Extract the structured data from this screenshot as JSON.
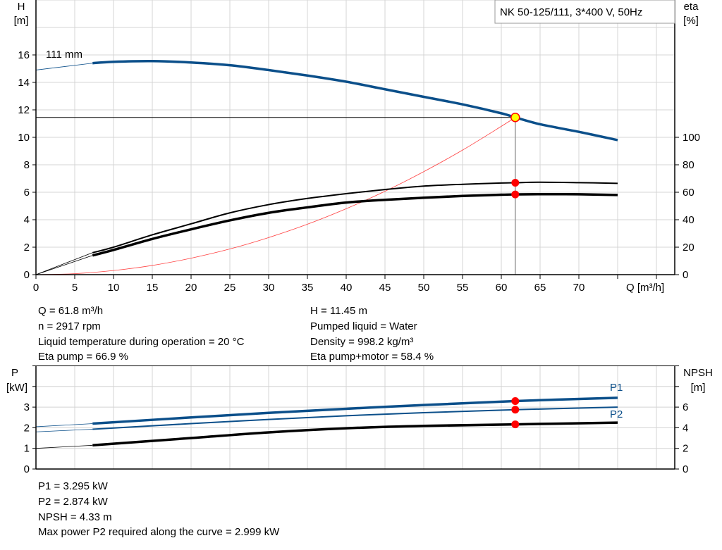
{
  "chart_data": [
    {
      "type": "line",
      "title": "NK 50-125/111, 3*400 V, 50Hz",
      "xlabel": "Q [m³/h]",
      "ylabel_left": [
        "H",
        "[m]"
      ],
      "ylabel_right": [
        "eta",
        "[%]"
      ],
      "xlim": [
        0,
        80
      ],
      "ylim_left": [
        0,
        20
      ],
      "ylim_right": [
        0,
        200
      ],
      "x_ticks": [
        0,
        5,
        10,
        15,
        20,
        25,
        30,
        35,
        40,
        45,
        50,
        55,
        60,
        65,
        70
      ],
      "y_ticks_left": [
        0,
        2,
        4,
        6,
        8,
        10,
        12,
        14,
        16
      ],
      "y_ticks_right": [
        0,
        20,
        40,
        60,
        80,
        100
      ],
      "grid": true,
      "curve_label": "111 mm",
      "colors": {
        "head": "#0b4f8a",
        "eta": "#000000",
        "system": "#ff4040",
        "point": "#ff0000",
        "op_point": "#ffff00"
      },
      "series": [
        {
          "id": "head",
          "axis": "left",
          "x": [
            0,
            7.3,
            10,
            15,
            20,
            25,
            30,
            35,
            40,
            45,
            50,
            55,
            60,
            61.8,
            65,
            70,
            75
          ],
          "y": [
            14.9,
            15.4,
            15.5,
            15.55,
            15.45,
            15.25,
            14.9,
            14.5,
            14.05,
            13.5,
            12.95,
            12.4,
            11.75,
            11.45,
            10.95,
            10.4,
            9.8
          ]
        },
        {
          "id": "eta-pump",
          "axis": "right",
          "x": [
            0,
            7.3,
            10,
            15,
            20,
            25,
            30,
            35,
            40,
            45,
            50,
            55,
            60,
            61.8,
            65,
            70,
            75
          ],
          "y": [
            0,
            16,
            20,
            29,
            37,
            45,
            51,
            55.5,
            59,
            62,
            64.5,
            65.8,
            66.7,
            66.9,
            67.3,
            67,
            66.5
          ]
        },
        {
          "id": "eta-pump-motor",
          "axis": "right",
          "x": [
            0,
            7.3,
            10,
            15,
            20,
            25,
            30,
            35,
            40,
            45,
            50,
            55,
            60,
            61.8,
            65,
            70,
            75
          ],
          "y": [
            0,
            14,
            18,
            26,
            33,
            39.5,
            45,
            49,
            52.5,
            54.5,
            56,
            57.3,
            58.2,
            58.4,
            58.6,
            58.5,
            58
          ]
        },
        {
          "id": "system",
          "axis": "left",
          "x": [
            0,
            5,
            10,
            15,
            20,
            25,
            30,
            35,
            40,
            45,
            50,
            55,
            60,
            61.8
          ],
          "y": [
            0,
            0.07,
            0.3,
            0.67,
            1.2,
            1.87,
            2.7,
            3.67,
            4.8,
            6.07,
            7.5,
            9.07,
            10.8,
            11.45
          ]
        }
      ],
      "operating_point": {
        "Q": 61.8,
        "H": 11.45,
        "eta_pump": 66.9,
        "eta_pump_motor": 58.4
      }
    },
    {
      "type": "line",
      "ylabel_left": [
        "P",
        "[kW]"
      ],
      "ylabel_right": [
        "NPSH",
        "[m]"
      ],
      "xlim": [
        0,
        80
      ],
      "ylim_left": [
        0,
        5
      ],
      "ylim_right": [
        0,
        10
      ],
      "y_ticks_left": [
        0,
        1,
        2,
        3
      ],
      "y_ticks_right": [
        0,
        2,
        4,
        6
      ],
      "grid": true,
      "colors": {
        "p1": "#0b4f8a",
        "p2": "#0b4f8a",
        "npsh": "#000000",
        "point": "#ff0000"
      },
      "series": [
        {
          "id": "P1",
          "name": "P1",
          "axis": "left",
          "x": [
            0,
            7.3,
            20,
            30,
            40,
            50,
            61.8,
            75
          ],
          "y": [
            2.05,
            2.2,
            2.5,
            2.72,
            2.92,
            3.1,
            3.295,
            3.45
          ]
        },
        {
          "id": "P2",
          "name": "P2",
          "axis": "left",
          "x": [
            0,
            7.3,
            20,
            30,
            40,
            50,
            61.8,
            75
          ],
          "y": [
            1.8,
            1.93,
            2.2,
            2.4,
            2.58,
            2.73,
            2.874,
            3.0
          ]
        },
        {
          "id": "NPSH",
          "axis": "right",
          "x": [
            0,
            7.3,
            20,
            30,
            40,
            50,
            61.8,
            75
          ],
          "y": [
            2.0,
            2.3,
            3.0,
            3.55,
            3.95,
            4.18,
            4.33,
            4.5
          ]
        }
      ],
      "operating_point": {
        "Q": 61.8,
        "P1": 3.295,
        "P2": 2.874,
        "NPSH": 4.33
      }
    }
  ],
  "info_top": {
    "left": [
      "Q = 61.8 m³/h",
      "n = 2917 rpm",
      "Liquid temperature during operation = 20 °C",
      "Eta pump = 66.9 %"
    ],
    "right": [
      "H = 11.45 m",
      "Pumped liquid = Water",
      "Density = 998.2 kg/m³",
      "Eta pump+motor = 58.4 %"
    ]
  },
  "info_bottom": [
    "P1 = 3.295 kW",
    "P2 = 2.874 kW",
    "NPSH = 4.33 m",
    "Max power P2 required along the curve = 2.999 kW"
  ]
}
